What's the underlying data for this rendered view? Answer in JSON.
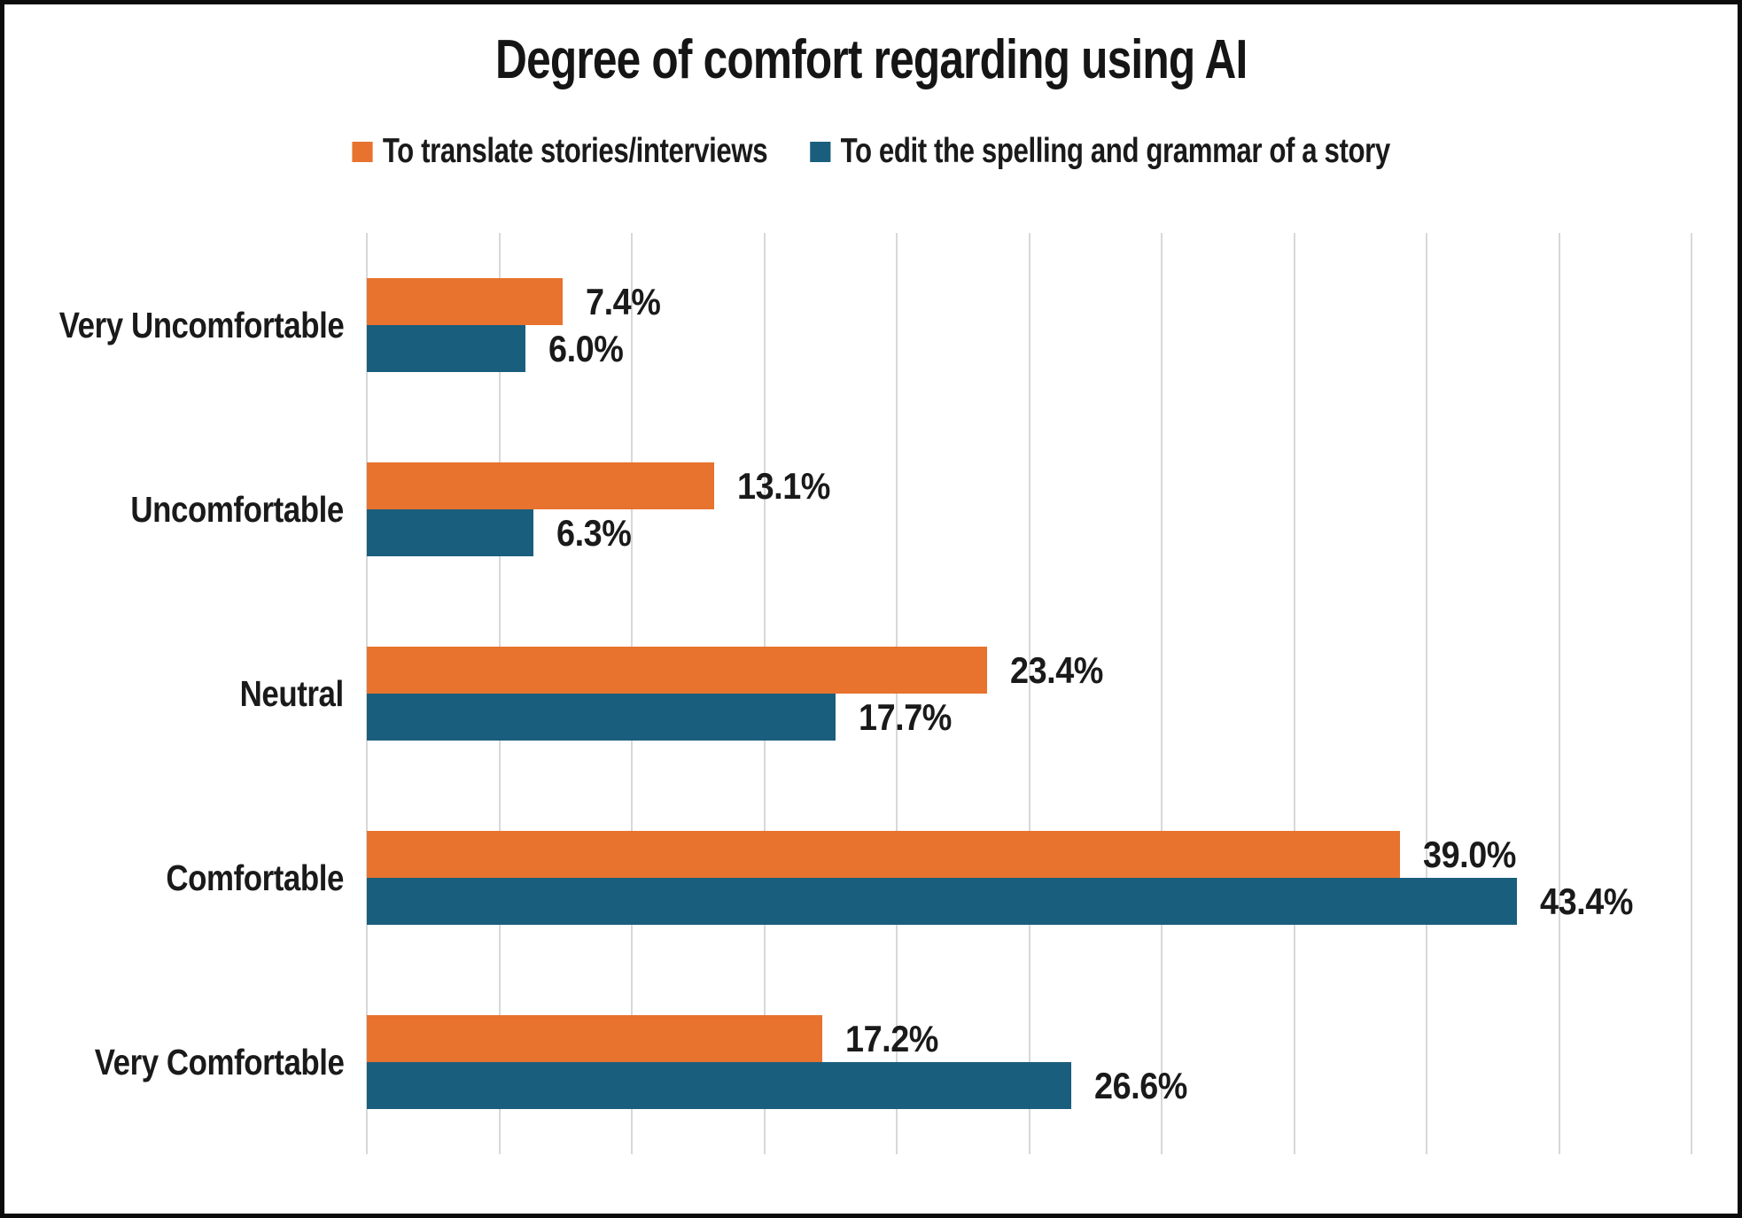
{
  "title": "Degree of comfort regarding using AI",
  "legend": [
    {
      "label": "To translate stories/interviews",
      "color": "#e7732e"
    },
    {
      "label": "To edit the spelling and grammar of a story",
      "color": "#1a5e7d"
    }
  ],
  "colors": {
    "orange_series": "#e7732e",
    "blue_series": "#1a5e7d",
    "gridline": "#d8d8d8",
    "text": "#1a1a1a",
    "background": "#ffffff",
    "border": "#0b0b0b"
  },
  "chart_data": {
    "type": "bar",
    "orientation": "horizontal",
    "title": "Degree of comfort regarding using AI",
    "categories": [
      "Very Uncomfortable",
      "Uncomfortable",
      "Neutral",
      "Comfortable",
      "Very Comfortable"
    ],
    "series": [
      {
        "name": "To translate stories/interviews",
        "color": "#e7732e",
        "values": [
          7.4,
          13.1,
          23.4,
          39.0,
          17.2
        ],
        "labels": [
          "7.4%",
          "13.1%",
          "23.4%",
          "39.0%",
          "17.2%"
        ]
      },
      {
        "name": "To edit the spelling and grammar of a story",
        "color": "#1a5e7d",
        "values": [
          6.0,
          6.3,
          17.7,
          43.4,
          26.6
        ],
        "labels": [
          "6.0%",
          "6.3%",
          "17.7%",
          "43.4%",
          "26.6%"
        ]
      }
    ],
    "xlim": [
      0,
      50
    ],
    "gridline_step": 5,
    "grid": true,
    "legend_position": "top",
    "value_labels": true,
    "axis_tick_labels_visible": false,
    "xlabel": "",
    "ylabel": ""
  }
}
